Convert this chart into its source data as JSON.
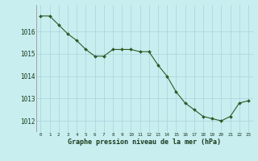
{
  "x": [
    0,
    1,
    2,
    3,
    4,
    5,
    6,
    7,
    8,
    9,
    10,
    11,
    12,
    13,
    14,
    15,
    16,
    17,
    18,
    19,
    20,
    21,
    22,
    23
  ],
  "y": [
    1016.7,
    1016.7,
    1016.3,
    1015.9,
    1015.6,
    1015.2,
    1014.9,
    1014.9,
    1015.2,
    1015.2,
    1015.2,
    1015.1,
    1015.1,
    1014.5,
    1014.0,
    1013.3,
    1012.8,
    1012.5,
    1012.2,
    1012.1,
    1012.0,
    1012.2,
    1012.8,
    1012.9
  ],
  "line_color": "#2d5a27",
  "marker_color": "#2d5a27",
  "bg_color": "#c8eef0",
  "grid_color": "#a8d4d8",
  "xlabel": "Graphe pression niveau de la mer (hPa)",
  "xlabel_color": "#1a3a1a",
  "tick_label_color": "#1a3a1a",
  "ylim": [
    1011.5,
    1017.2
  ],
  "yticks": [
    1012,
    1013,
    1014,
    1015,
    1016
  ],
  "xticks": [
    0,
    1,
    2,
    3,
    4,
    5,
    6,
    7,
    8,
    9,
    10,
    11,
    12,
    13,
    14,
    15,
    16,
    17,
    18,
    19,
    20,
    21,
    22,
    23
  ]
}
